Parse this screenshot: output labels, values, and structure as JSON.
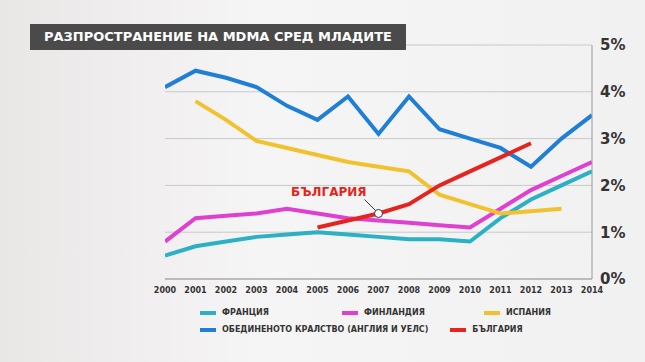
{
  "chart_data": {
    "type": "line",
    "title": "РАЗПРОСТРАНЕНИЕ НА MDMA СРЕД МЛАДИТЕ",
    "x": [
      2000,
      2001,
      2002,
      2003,
      2004,
      2005,
      2006,
      2007,
      2008,
      2009,
      2010,
      2011,
      2012,
      2013,
      2014
    ],
    "xlim": [
      2000,
      2014
    ],
    "xticks": [
      2000,
      2001,
      2002,
      2003,
      2004,
      2005,
      2006,
      2007,
      2008,
      2009,
      2010,
      2011,
      2012,
      2013,
      2014
    ],
    "ylim": [
      0,
      5
    ],
    "yticks": [
      {
        "value": 0,
        "label": "0%"
      },
      {
        "value": 1,
        "label": "1%"
      },
      {
        "value": 2,
        "label": "2%"
      },
      {
        "value": 3,
        "label": "3%"
      },
      {
        "value": 4,
        "label": "4%"
      },
      {
        "value": 5,
        "label": "5%"
      }
    ],
    "grid": true,
    "series": [
      {
        "name": "ФРАНЦИЯ",
        "color": "#2bb0c4",
        "values": [
          0.5,
          0.7,
          0.8,
          0.9,
          0.95,
          1.0,
          0.95,
          0.9,
          0.85,
          0.85,
          0.8,
          1.3,
          1.7,
          2.0,
          2.3
        ]
      },
      {
        "name": "ФИНЛАНДИЯ",
        "color": "#e040d0",
        "values": [
          0.8,
          1.3,
          1.35,
          1.4,
          1.5,
          1.4,
          1.3,
          1.25,
          1.2,
          1.15,
          1.1,
          1.5,
          1.9,
          2.2,
          2.5
        ]
      },
      {
        "name": "ИСПАНИЯ",
        "color": "#f2c12e",
        "values": [
          null,
          3.8,
          3.4,
          2.95,
          2.8,
          2.65,
          2.5,
          2.4,
          2.3,
          1.8,
          1.6,
          1.4,
          1.45,
          1.5,
          null
        ]
      },
      {
        "name": "ОБЕДИНЕНОТО КРАЛСТВО (АНГЛИЯ И УЕЛС)",
        "color": "#1f7fd6",
        "values": [
          4.1,
          4.45,
          4.3,
          4.1,
          3.7,
          3.4,
          3.9,
          3.1,
          3.9,
          3.2,
          3.0,
          2.8,
          2.4,
          3.0,
          3.5
        ]
      },
      {
        "name": "БЪЛГАРИЯ",
        "color": "#e52420",
        "values": [
          null,
          null,
          null,
          null,
          null,
          1.1,
          1.25,
          1.4,
          1.6,
          2.0,
          2.3,
          2.6,
          2.9,
          null,
          null
        ]
      }
    ],
    "annotations": [
      {
        "text": "БЪЛГАРИЯ",
        "x": 2007,
        "y": 1.4,
        "color": "#e52420"
      }
    ]
  }
}
